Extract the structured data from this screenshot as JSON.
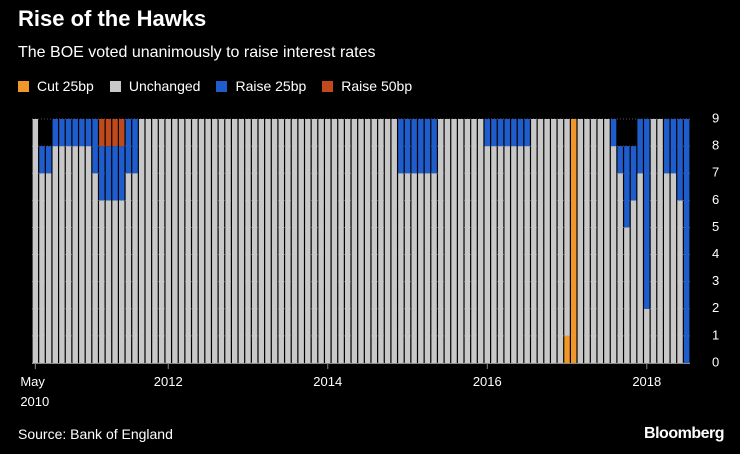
{
  "chart_data": {
    "type": "stacked_bar",
    "title": "Rise of the Hawks",
    "subtitle": "The BOE voted unanimously to raise interest rates",
    "source": "Source: Bank of England",
    "brand": "Bloomberg",
    "categories": [
      "May 2010",
      null,
      null,
      null,
      null,
      null,
      null,
      null,
      null,
      null,
      null,
      null,
      null,
      null,
      null,
      null,
      null,
      null,
      null,
      null,
      "2012",
      null,
      null,
      null,
      null,
      null,
      null,
      null,
      null,
      null,
      null,
      null,
      null,
      null,
      null,
      null,
      null,
      null,
      null,
      null,
      null,
      null,
      null,
      null,
      "2014",
      null,
      null,
      null,
      null,
      null,
      null,
      null,
      null,
      null,
      null,
      null,
      null,
      null,
      null,
      null,
      null,
      null,
      null,
      null,
      null,
      null,
      null,
      null,
      "2016",
      null,
      null,
      null,
      null,
      null,
      null,
      null,
      null,
      null,
      null,
      null,
      null,
      null,
      null,
      null,
      null,
      null,
      null,
      null,
      null,
      null,
      null,
      null,
      "2018",
      null,
      null,
      null,
      null,
      null,
      null
    ],
    "series": [
      {
        "name": "Cut 25bp",
        "color": "#f0962a",
        "values": [
          0,
          0,
          0,
          0,
          0,
          0,
          0,
          0,
          0,
          0,
          0,
          0,
          0,
          0,
          0,
          0,
          0,
          0,
          0,
          0,
          0,
          0,
          0,
          0,
          0,
          0,
          0,
          0,
          0,
          0,
          0,
          0,
          0,
          0,
          0,
          0,
          0,
          0,
          0,
          0,
          0,
          0,
          0,
          0,
          0,
          0,
          0,
          0,
          0,
          0,
          0,
          0,
          0,
          0,
          0,
          0,
          0,
          0,
          0,
          0,
          0,
          0,
          0,
          0,
          0,
          0,
          0,
          0,
          0,
          0,
          0,
          0,
          0,
          0,
          0,
          0,
          0,
          0,
          0,
          0,
          1,
          9,
          0,
          0,
          0,
          0,
          0,
          0,
          0,
          0,
          0,
          0,
          0,
          0,
          0,
          0,
          0,
          0,
          0
        ]
      },
      {
        "name": "Unchanged",
        "color": "#c8c8c8",
        "values": [
          9,
          7,
          7,
          8,
          8,
          8,
          8,
          8,
          8,
          7,
          6,
          6,
          6,
          6,
          7,
          7,
          9,
          9,
          9,
          9,
          9,
          9,
          9,
          9,
          9,
          9,
          9,
          9,
          9,
          9,
          9,
          9,
          9,
          9,
          9,
          9,
          9,
          9,
          9,
          9,
          9,
          9,
          9,
          9,
          9,
          9,
          9,
          9,
          9,
          9,
          9,
          9,
          9,
          9,
          9,
          7,
          7,
          7,
          7,
          7,
          7,
          9,
          9,
          9,
          9,
          9,
          9,
          9,
          8,
          8,
          8,
          8,
          8,
          8,
          8,
          9,
          9,
          9,
          9,
          9,
          8,
          0,
          9,
          9,
          9,
          9,
          9,
          8,
          7,
          5,
          6,
          7,
          2,
          9,
          9,
          7,
          7,
          6,
          0
        ]
      },
      {
        "name": "Raise 25bp",
        "color": "#1f5ccc",
        "values": [
          0,
          1,
          1,
          1,
          1,
          1,
          1,
          1,
          1,
          2,
          2,
          2,
          2,
          2,
          2,
          2,
          0,
          0,
          0,
          0,
          0,
          0,
          0,
          0,
          0,
          0,
          0,
          0,
          0,
          0,
          0,
          0,
          0,
          0,
          0,
          0,
          0,
          0,
          0,
          0,
          0,
          0,
          0,
          0,
          0,
          0,
          0,
          0,
          0,
          0,
          0,
          0,
          0,
          0,
          0,
          2,
          2,
          2,
          2,
          2,
          2,
          0,
          0,
          0,
          0,
          0,
          0,
          0,
          1,
          1,
          1,
          1,
          1,
          1,
          1,
          0,
          0,
          0,
          0,
          0,
          0,
          0,
          0,
          0,
          0,
          0,
          0,
          1,
          1,
          3,
          2,
          2,
          7,
          0,
          0,
          2,
          2,
          3,
          9
        ]
      },
      {
        "name": "Raise 50bp",
        "color": "#c04a1c",
        "values": [
          0,
          0,
          0,
          0,
          0,
          0,
          0,
          0,
          0,
          0,
          1,
          1,
          1,
          1,
          0,
          0,
          0,
          0,
          0,
          0,
          0,
          0,
          0,
          0,
          0,
          0,
          0,
          0,
          0,
          0,
          0,
          0,
          0,
          0,
          0,
          0,
          0,
          0,
          0,
          0,
          0,
          0,
          0,
          0,
          0,
          0,
          0,
          0,
          0,
          0,
          0,
          0,
          0,
          0,
          0,
          0,
          0,
          0,
          0,
          0,
          0,
          0,
          0,
          0,
          0,
          0,
          0,
          0,
          0,
          0,
          0,
          0,
          0,
          0,
          0,
          0,
          0,
          0,
          0,
          0,
          0,
          0,
          0,
          0,
          0,
          0,
          0,
          0,
          0,
          0,
          0,
          0,
          0,
          0,
          0,
          0,
          0,
          0,
          0
        ]
      }
    ],
    "ylim": [
      0,
      9
    ],
    "yticks": [
      0,
      1,
      2,
      3,
      4,
      5,
      6,
      7,
      8,
      9
    ],
    "grid": true
  }
}
